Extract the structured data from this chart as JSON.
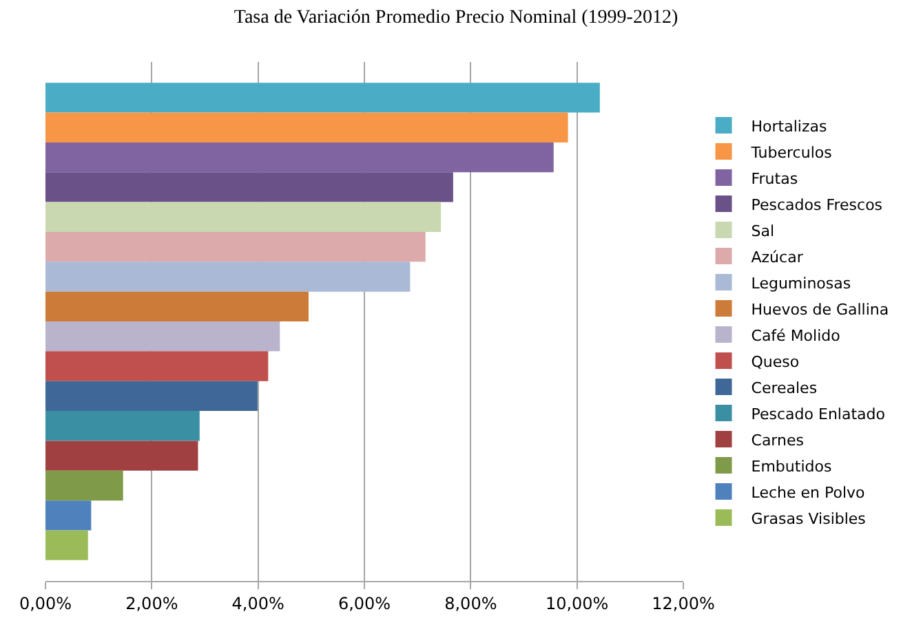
{
  "chart_data": {
    "type": "bar",
    "orientation": "horizontal",
    "title": "Tasa de Variación Promedio Precio Nominal (1999-2012)",
    "categories": [
      null
    ],
    "series": [
      {
        "name": "Hortalizas",
        "color": "#4bacc6",
        "values": [
          10.43
        ]
      },
      {
        "name": "Tuberculos",
        "color": "#f79646",
        "values": [
          9.83
        ]
      },
      {
        "name": "Frutas",
        "color": "#8064a2",
        "values": [
          9.56
        ]
      },
      {
        "name": "Pescados Frescos",
        "color": "#6a5288",
        "values": [
          7.67
        ]
      },
      {
        "name": "Sal",
        "color": "#c9d8b0",
        "values": [
          7.44
        ]
      },
      {
        "name": "Azúcar",
        "color": "#dcaaab",
        "values": [
          7.15
        ]
      },
      {
        "name": "Leguminosas",
        "color": "#a9b9d6",
        "values": [
          6.86
        ]
      },
      {
        "name": "Huevos de Gallina",
        "color": "#cd7b38",
        "values": [
          4.95
        ]
      },
      {
        "name": "Café Molido",
        "color": "#b9b3cb",
        "values": [
          4.41
        ]
      },
      {
        "name": "Queso",
        "color": "#c0504d",
        "values": [
          4.19
        ]
      },
      {
        "name": "Cereales",
        "color": "#3f6899",
        "values": [
          3.99
        ]
      },
      {
        "name": "Pescado Enlatado",
        "color": "#3a8fa3",
        "values": [
          2.9
        ]
      },
      {
        "name": "Carnes",
        "color": "#a04040",
        "values": [
          2.87
        ]
      },
      {
        "name": "Embutidos",
        "color": "#7f9a48",
        "values": [
          1.46
        ]
      },
      {
        "name": "Leche en Polvo",
        "color": "#4f81bd",
        "values": [
          0.86
        ]
      },
      {
        "name": "Grasas Visibles",
        "color": "#9bbb59",
        "values": [
          0.8
        ]
      }
    ],
    "xlim": [
      0,
      12
    ],
    "xticks": [
      {
        "value": 0,
        "label": "0,00%"
      },
      {
        "value": 2,
        "label": "2,00%"
      },
      {
        "value": 4,
        "label": "4,00%"
      },
      {
        "value": 6,
        "label": "6,00%"
      },
      {
        "value": 8,
        "label": "8,00%"
      },
      {
        "value": 10,
        "label": "10,00%"
      },
      {
        "value": 12,
        "label": "12,00%"
      }
    ],
    "grid": "x",
    "legend": "right"
  }
}
